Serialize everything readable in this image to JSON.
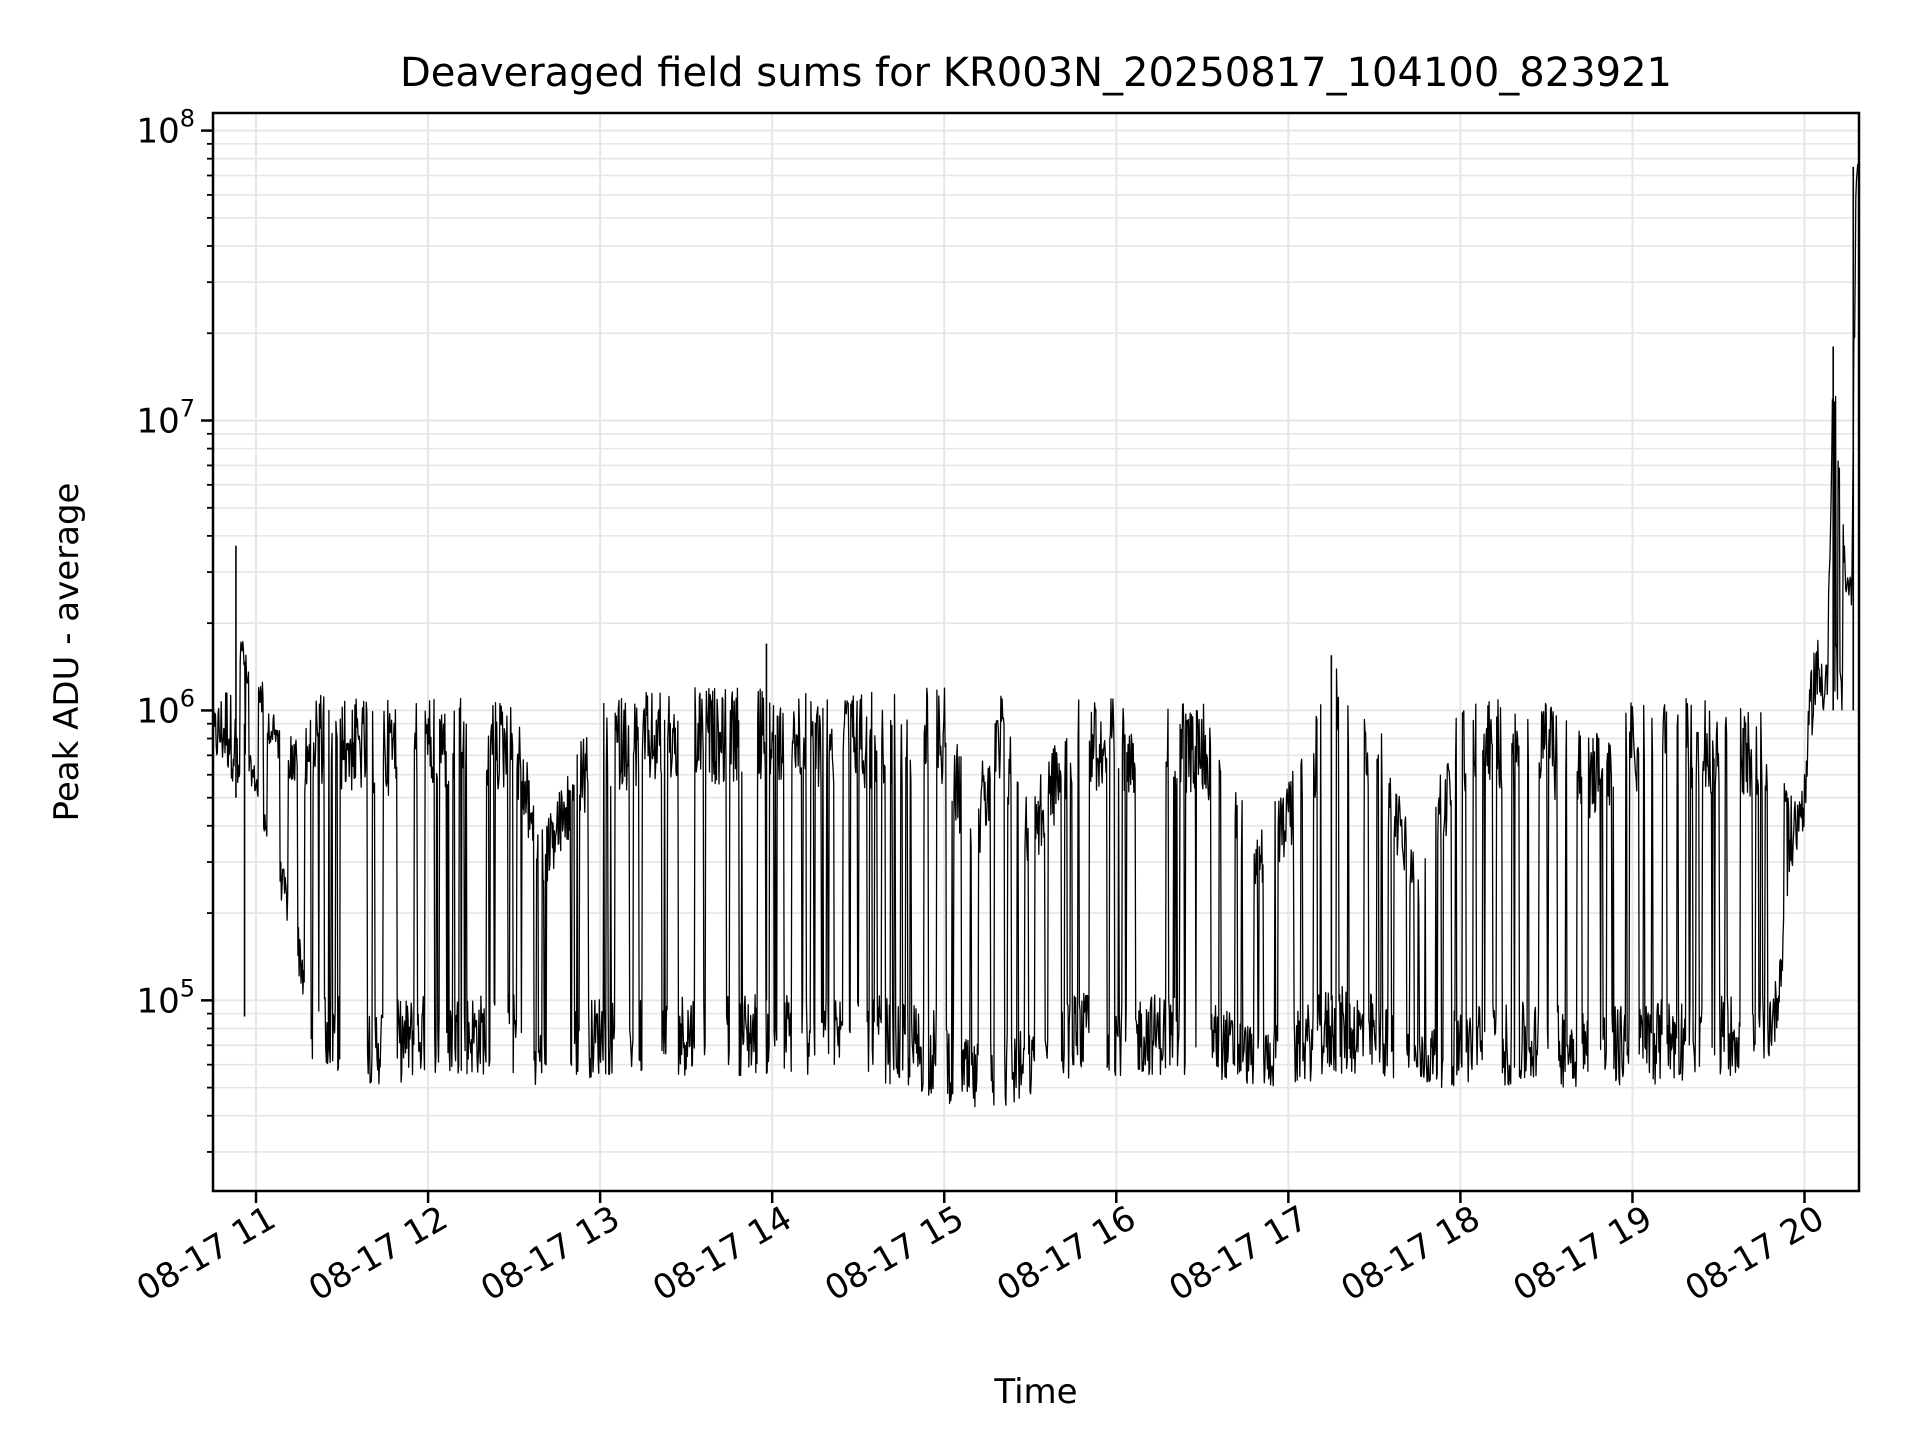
{
  "chart_data": {
    "type": "line",
    "title": "Deaveraged field sums for KR003N_20250817_104100_823921",
    "xlabel": "Time",
    "ylabel": "Peak ADU - average",
    "yscale": "log",
    "grid": true,
    "line_color": "#000000",
    "grid_color": "#e6e6e6",
    "xlim": [
      "2025-08-17 10:45",
      "2025-08-17 20:19"
    ],
    "ylim": [
      22000,
      115000000
    ],
    "x_ticks": [
      {
        "time": "2025-08-17 11:00",
        "label": "08-17 11"
      },
      {
        "time": "2025-08-17 12:00",
        "label": "08-17 12"
      },
      {
        "time": "2025-08-17 13:00",
        "label": "08-17 13"
      },
      {
        "time": "2025-08-17 14:00",
        "label": "08-17 14"
      },
      {
        "time": "2025-08-17 15:00",
        "label": "08-17 15"
      },
      {
        "time": "2025-08-17 16:00",
        "label": "08-17 16"
      },
      {
        "time": "2025-08-17 17:00",
        "label": "08-17 17"
      },
      {
        "time": "2025-08-17 18:00",
        "label": "08-17 18"
      },
      {
        "time": "2025-08-17 19:00",
        "label": "08-17 19"
      },
      {
        "time": "2025-08-17 20:00",
        "label": "08-17 20"
      }
    ],
    "y_ticks": [
      {
        "value": 100000,
        "base": "10",
        "exp": "5"
      },
      {
        "value": 1000000,
        "base": "10",
        "exp": "6"
      },
      {
        "value": 10000000,
        "base": "10",
        "exp": "7"
      },
      {
        "value": 100000000,
        "base": "10",
        "exp": "8"
      }
    ],
    "series": [
      {
        "x": [
          "2025-08-17 10:45",
          "2025-08-17 10:50",
          "2025-08-17 10:53",
          "2025-08-17 10:55",
          "2025-08-17 10:57",
          "2025-08-17 11:00",
          "2025-08-17 11:05",
          "2025-08-17 11:10",
          "2025-08-17 11:15",
          "2025-08-17 11:20",
          "2025-08-17 11:30",
          "2025-08-17 11:45",
          "2025-08-17 12:00",
          "2025-08-17 12:15",
          "2025-08-17 12:30",
          "2025-08-17 12:40",
          "2025-08-17 13:00",
          "2025-08-17 13:30",
          "2025-08-17 14:00",
          "2025-08-17 14:30",
          "2025-08-17 14:45",
          "2025-08-17 15:00",
          "2025-08-17 15:10",
          "2025-08-17 15:20",
          "2025-08-17 15:30",
          "2025-08-17 15:45",
          "2025-08-17 16:00",
          "2025-08-17 16:30",
          "2025-08-17 16:50",
          "2025-08-17 17:00",
          "2025-08-17 17:15",
          "2025-08-17 17:30",
          "2025-08-17 17:45",
          "2025-08-17 18:00",
          "2025-08-17 18:30",
          "2025-08-17 18:45",
          "2025-08-17 19:00",
          "2025-08-17 19:30",
          "2025-08-17 19:45",
          "2025-08-17 19:50",
          "2025-08-17 19:55",
          "2025-08-17 20:00",
          "2025-08-17 20:03",
          "2025-08-17 20:08",
          "2025-08-17 20:10",
          "2025-08-17 20:15",
          "2025-08-17 20:16",
          "2025-08-17 20:18"
        ],
        "low": [
          650000,
          600000,
          550000,
          500000,
          600000,
          500000,
          300000,
          200000,
          120000,
          60000,
          55000,
          50000,
          55000,
          55000,
          55000,
          50000,
          55000,
          55000,
          55000,
          55000,
          50000,
          45000,
          40000,
          40000,
          45000,
          55000,
          55000,
          55000,
          50000,
          50000,
          55000,
          55000,
          50000,
          50000,
          50000,
          50000,
          50000,
          55000,
          55000,
          70000,
          250000,
          400000,
          900000,
          1000000,
          1000000,
          900000,
          900000,
          60000000
        ],
        "high": [
          1000000,
          1300000,
          1000000,
          2200000,
          1500000,
          1500000,
          1000000,
          900000,
          800000,
          1200000,
          1100000,
          1100000,
          1100000,
          1100000,
          1100000,
          400000,
          1100000,
          1200000,
          1200000,
          1150000,
          1200000,
          1250000,
          500000,
          1200000,
          500000,
          1100000,
          1100000,
          1100000,
          400000,
          600000,
          1500000,
          1100000,
          300000,
          1100000,
          1100000,
          800000,
          1100000,
          1100000,
          1000000,
          800000,
          500000,
          600000,
          1900000,
          1700000,
          18000000,
          2900000,
          2900000,
          78000000
        ],
        "spikes": [
          {
            "x": "2025-08-17 10:53",
            "min": 500000,
            "max": 3700000
          },
          {
            "x": "2025-08-17 10:56",
            "min": 88000,
            "max": 900000
          },
          {
            "x": "2025-08-17 13:58",
            "min": 100000,
            "max": 1700000
          },
          {
            "x": "2025-08-17 17:15",
            "min": 100000,
            "max": 1550000
          },
          {
            "x": "2025-08-17 20:10",
            "min": 1000000,
            "max": 18000000
          },
          {
            "x": "2025-08-17 20:17",
            "min": 1000000,
            "max": 75000000
          }
        ]
      }
    ]
  }
}
